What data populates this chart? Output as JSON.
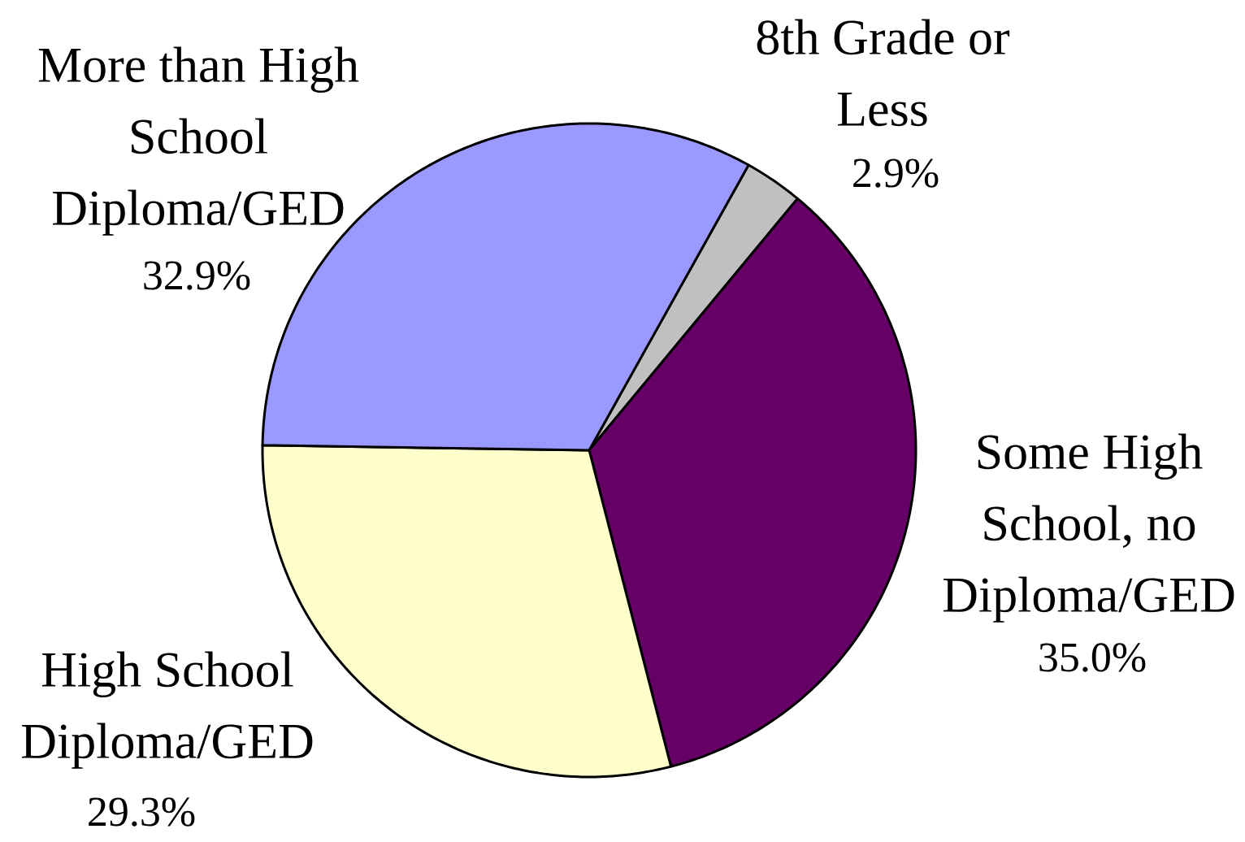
{
  "chart_data": {
    "type": "pie",
    "categories": [
      "8th Grade or Less",
      "Some High School, no Diploma/GED",
      "High School Diploma/GED",
      "More than High School Diploma/GED"
    ],
    "values": [
      2.9,
      35.0,
      29.3,
      32.9
    ],
    "colors": [
      "#c0c0c0",
      "#660066",
      "#ffffcc",
      "#9999ff"
    ],
    "value_labels": [
      "2.9%",
      "35.0%",
      "29.3%",
      "32.9%"
    ]
  }
}
